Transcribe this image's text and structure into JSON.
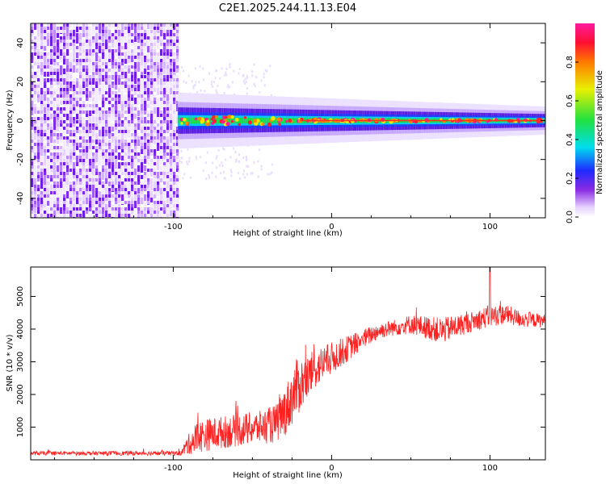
{
  "title": "C2E1.2025.244.11.13.E04",
  "chart_data": [
    {
      "type": "heatmap",
      "name": "spectrogram",
      "xlabel": "Height of straight line (km)",
      "ylabel": "Frequency (Hz)",
      "xlim": [
        -190,
        135
      ],
      "ylim": [
        -50,
        50
      ],
      "xticks": [
        -100,
        0,
        100
      ],
      "xtick_labels": [
        "-100",
        "0",
        "100"
      ],
      "yticks": [
        -40,
        -20,
        0,
        20,
        40
      ],
      "ytick_labels": [
        "-40",
        "-20",
        "0",
        "20",
        "40"
      ],
      "colorbar": {
        "label": "Normalized spectral amplitude",
        "range": [
          0,
          1
        ],
        "ticks": [
          0.0,
          0.2,
          0.4,
          0.6,
          0.8
        ],
        "tick_labels": [
          "0.0",
          "0.2",
          "0.4",
          "0.6",
          "0.8"
        ],
        "colormap": "rainbow (white/light violet to purple, blue, cyan, green, yellow, red, magenta)"
      },
      "description_values": {
        "noise_region_x": [
          -190,
          -97
        ],
        "signal_start_x": -97,
        "signal_center_freq_hz": 0,
        "signal_halfwidth_hz_at_start": 8,
        "signal_halfwidth_hz_at_end": 4
      }
    },
    {
      "type": "line",
      "name": "snr",
      "xlabel": "Height of straight line (km)",
      "ylabel": "SNR (10 * v/v)",
      "xlim": [
        -190,
        135
      ],
      "ylim": [
        0,
        5900
      ],
      "xticks": [
        -100,
        0,
        100
      ],
      "xtick_labels": [
        "-100",
        "0",
        "100"
      ],
      "yticks": [
        1000,
        2000,
        3000,
        4000,
        5000
      ],
      "ytick_labels": [
        "1000",
        "2000",
        "3000",
        "4000",
        "5000"
      ],
      "color": "#ff2020",
      "envelope": {
        "x": [
          -190,
          -95,
          -92,
          -85,
          -75,
          -60,
          -45,
          -35,
          -28,
          -22,
          -15,
          -10,
          0,
          10,
          20,
          30,
          40,
          50,
          60,
          70,
          80,
          90,
          100,
          110,
          120,
          135
        ],
        "mean": [
          200,
          200,
          400,
          700,
          800,
          900,
          1000,
          1100,
          1600,
          2200,
          2500,
          2800,
          3100,
          3400,
          3700,
          3950,
          4050,
          4150,
          4050,
          3950,
          4100,
          4250,
          4400,
          4450,
          4300,
          4250
        ],
        "spread": [
          60,
          70,
          250,
          500,
          500,
          500,
          500,
          600,
          800,
          900,
          700,
          600,
          500,
          400,
          300,
          250,
          250,
          300,
          350,
          400,
          350,
          300,
          350,
          300,
          250,
          200
        ]
      },
      "peak": {
        "x": 100,
        "y": 5900
      }
    }
  ]
}
